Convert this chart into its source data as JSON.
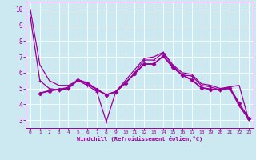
{
  "xlabel": "Windchill (Refroidissement éolien,°C)",
  "bg_color": "#cce8f0",
  "grid_color": "#ffffff",
  "line_color": "#990099",
  "spine_color": "#990099",
  "tick_color": "#990099",
  "xlim": [
    -0.5,
    23.5
  ],
  "ylim": [
    2.5,
    10.5
  ],
  "yticks": [
    3,
    4,
    5,
    6,
    7,
    8,
    9,
    10
  ],
  "xticks": [
    0,
    1,
    2,
    3,
    4,
    5,
    6,
    7,
    8,
    9,
    10,
    11,
    12,
    13,
    14,
    15,
    16,
    17,
    18,
    19,
    20,
    21,
    22,
    23
  ],
  "series": [
    {
      "x": [
        0,
        1,
        2,
        3,
        4,
        5,
        6,
        7,
        8,
        9,
        10,
        11,
        12,
        13,
        14,
        15,
        16,
        17,
        18,
        19,
        20,
        21,
        22,
        23
      ],
      "y": [
        10.0,
        6.5,
        5.5,
        5.2,
        5.2,
        5.5,
        5.3,
        4.9,
        4.6,
        4.8,
        5.5,
        6.2,
        6.9,
        7.0,
        7.3,
        6.5,
        6.0,
        5.9,
        5.3,
        5.2,
        5.0,
        5.1,
        5.2,
        3.0
      ],
      "marker": null,
      "lw": 0.9
    },
    {
      "x": [
        0,
        1,
        2,
        3,
        4,
        5,
        6,
        7,
        8,
        9,
        10,
        11,
        12,
        13,
        14,
        15,
        16,
        17,
        18,
        19,
        20,
        21,
        22,
        23
      ],
      "y": [
        9.5,
        5.5,
        5.0,
        4.9,
        5.0,
        5.5,
        5.2,
        4.8,
        2.9,
        4.8,
        5.3,
        6.0,
        6.8,
        6.8,
        7.25,
        6.45,
        5.85,
        5.8,
        5.2,
        5.1,
        4.9,
        5.0,
        3.9,
        3.05
      ],
      "marker": "+",
      "markersize": 3.5,
      "lw": 0.9
    },
    {
      "x": [
        1,
        2,
        3,
        4,
        5,
        6,
        7,
        8,
        9,
        10,
        11,
        12,
        13,
        14,
        15,
        16,
        17,
        18,
        19,
        20,
        21,
        22,
        23
      ],
      "y": [
        4.7,
        4.85,
        4.95,
        5.05,
        5.55,
        5.35,
        4.95,
        4.6,
        4.8,
        5.35,
        5.95,
        6.55,
        6.55,
        7.05,
        6.35,
        5.85,
        5.55,
        5.05,
        4.95,
        4.95,
        5.05,
        4.05,
        3.1
      ],
      "marker": null,
      "lw": 1.3
    },
    {
      "x": [
        1,
        2,
        3,
        4,
        5,
        6,
        7,
        8,
        9,
        10,
        11,
        12,
        13,
        14,
        15,
        16,
        17,
        18,
        19,
        20,
        21,
        22,
        23
      ],
      "y": [
        4.7,
        4.85,
        4.95,
        5.05,
        5.55,
        5.35,
        4.95,
        4.6,
        4.8,
        5.35,
        5.95,
        6.55,
        6.55,
        7.05,
        6.35,
        5.85,
        5.55,
        5.05,
        4.95,
        4.95,
        5.05,
        4.05,
        3.1
      ],
      "marker": "D",
      "markersize": 2.5,
      "lw": 0.7
    }
  ]
}
